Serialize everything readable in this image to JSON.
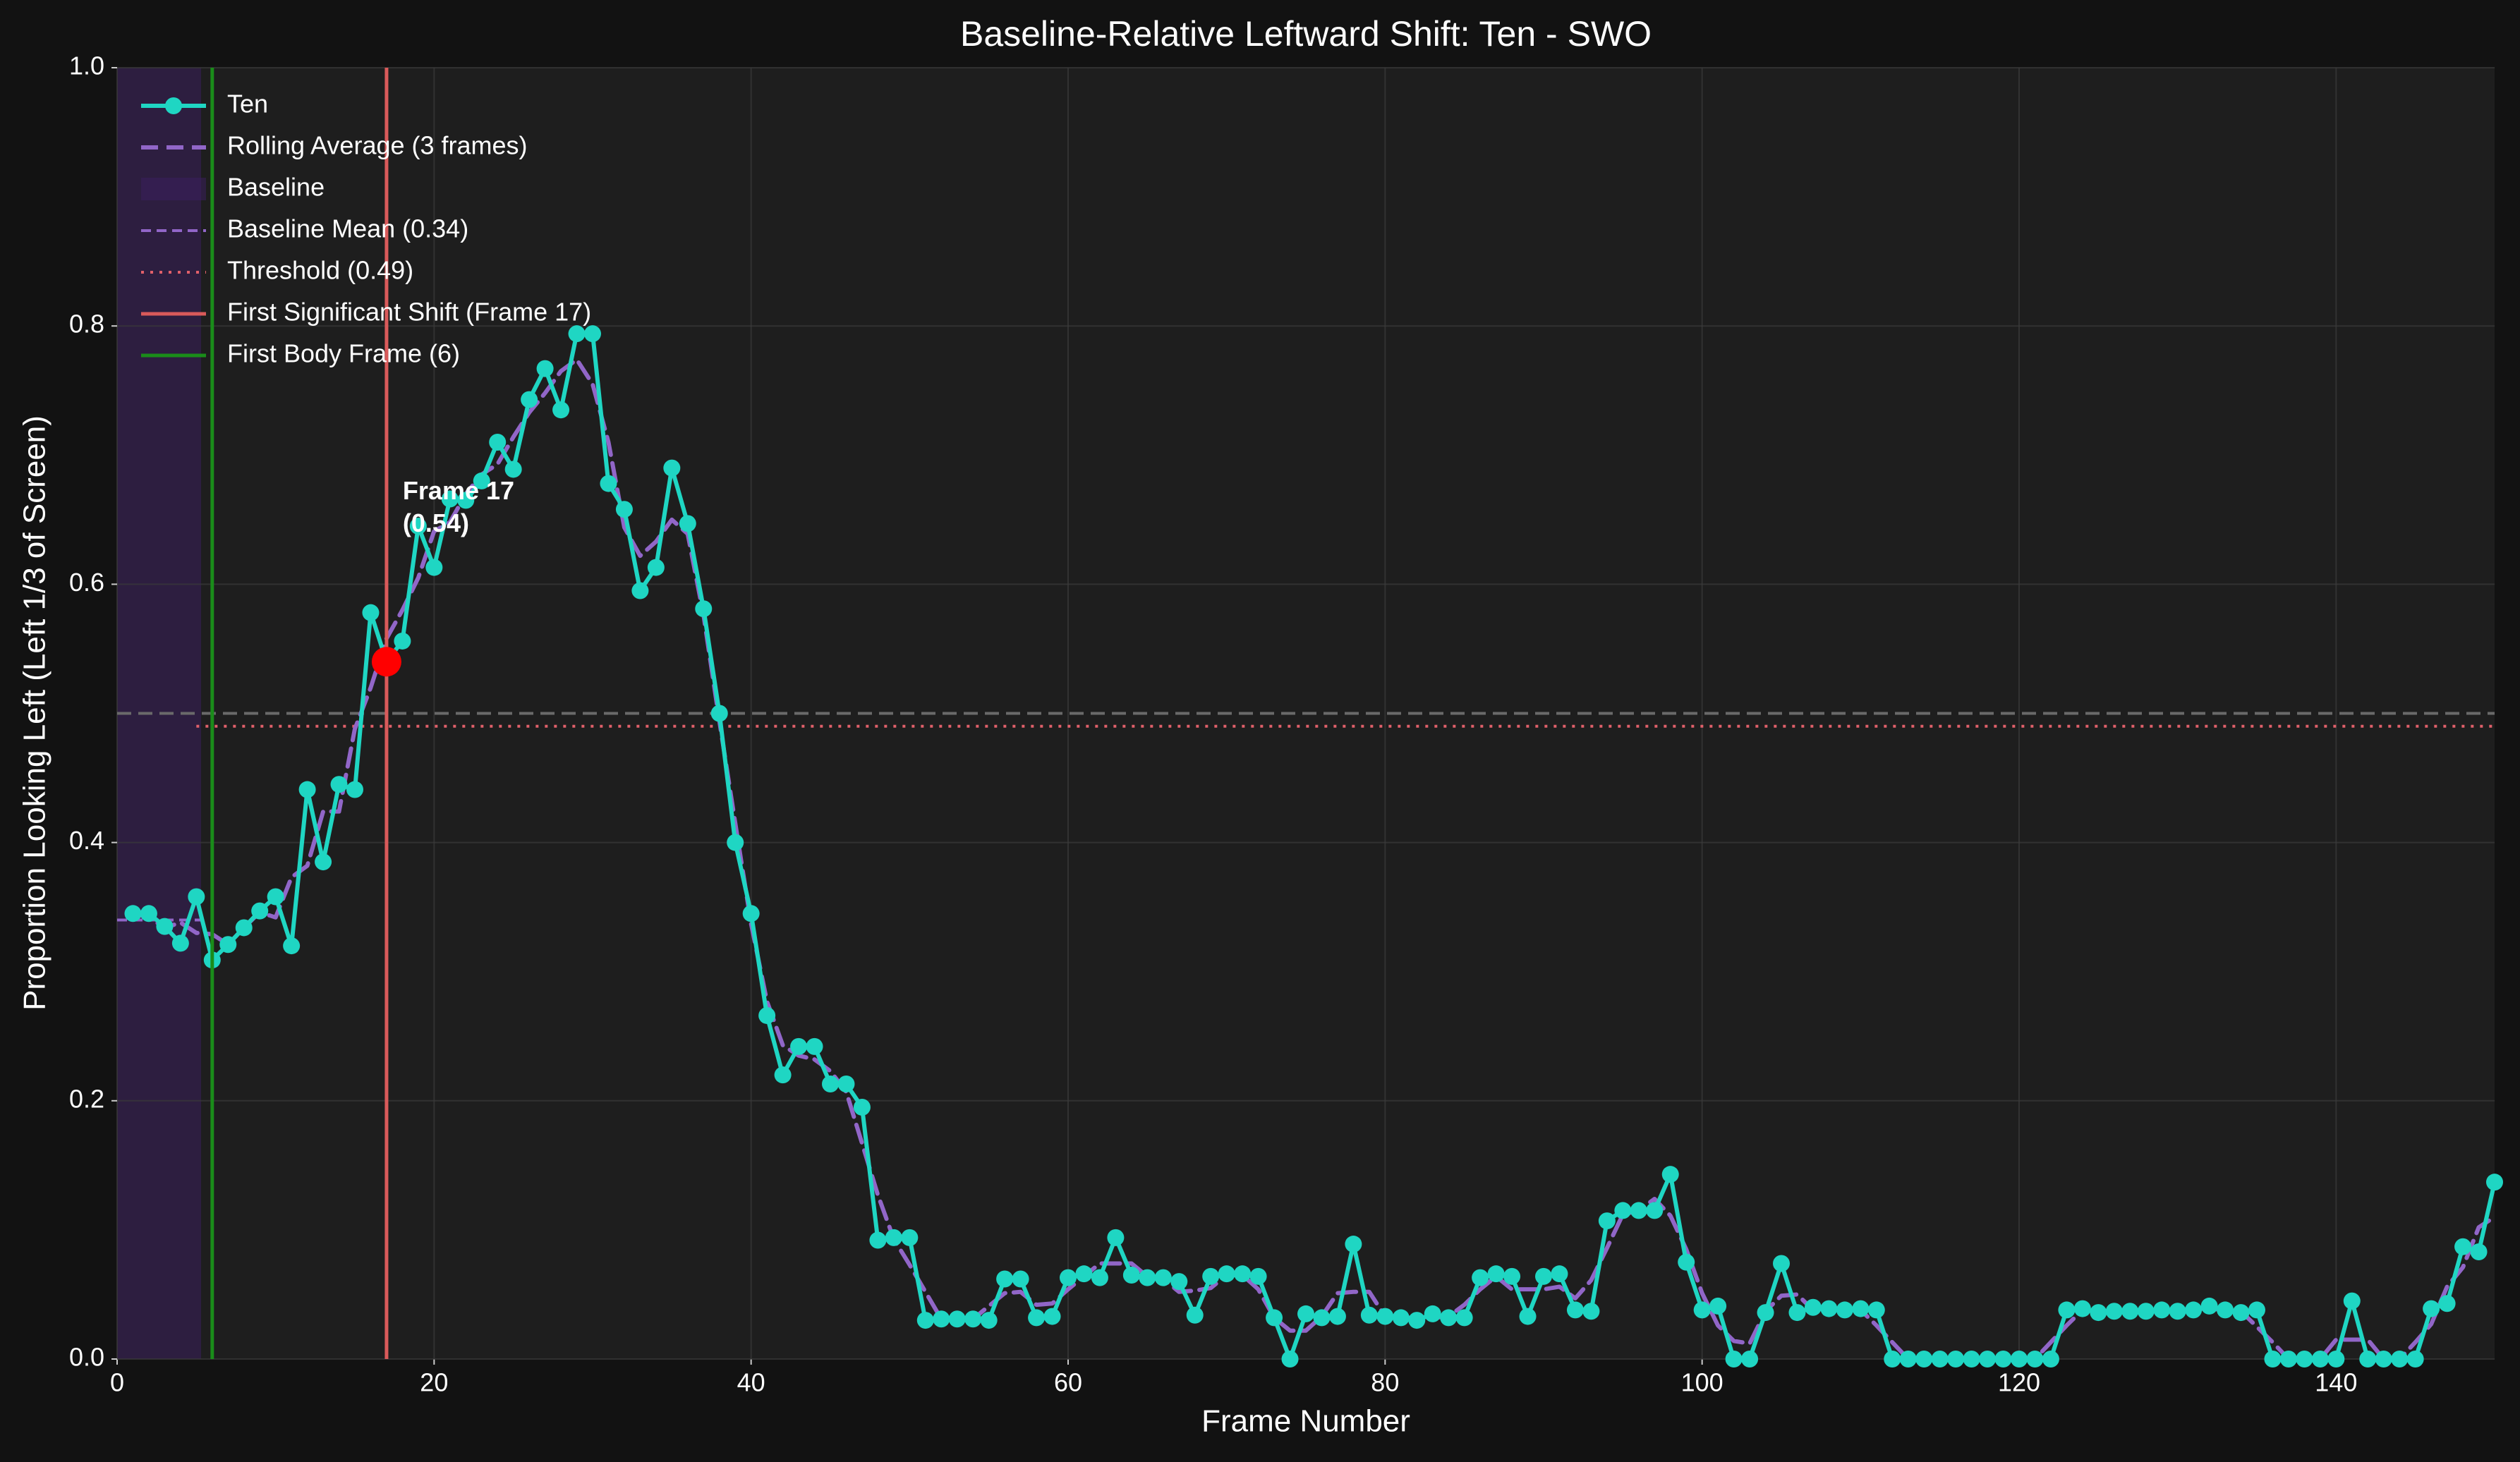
{
  "chart_data": {
    "type": "line",
    "title": "Baseline-Relative Leftward Shift: Ten - SWO",
    "xlabel": "Frame Number",
    "ylabel": "Proportion Looking Left (Left 1/3 of Screen)",
    "xlim": [
      0,
      150
    ],
    "ylim": [
      0,
      1
    ],
    "xticks": [
      0,
      20,
      40,
      60,
      80,
      100,
      120,
      140
    ],
    "yticks": [
      {
        "value": 0,
        "label": "0.0"
      },
      0.2,
      0.4,
      0.6,
      0.8,
      {
        "value": 1,
        "label": "1.0"
      }
    ],
    "grid": true,
    "legend": "upper left",
    "x": [
      1,
      2,
      3,
      4,
      5,
      6,
      7,
      8,
      9,
      10,
      11,
      12,
      13,
      14,
      15,
      16,
      17,
      18,
      19,
      20,
      21,
      22,
      23,
      24,
      25,
      26,
      27,
      28,
      29,
      30,
      31,
      32,
      33,
      34,
      35,
      36,
      37,
      38,
      39,
      40,
      41,
      42,
      43,
      44,
      45,
      46,
      47,
      48,
      49,
      50,
      51,
      52,
      53,
      54,
      55,
      56,
      57,
      58,
      59,
      60,
      61,
      62,
      63,
      64,
      65,
      66,
      67,
      68,
      69,
      70,
      71,
      72,
      73,
      74,
      75,
      76,
      77,
      78,
      79,
      80,
      81,
      82,
      83,
      84,
      85,
      86,
      87,
      88,
      89,
      90,
      91,
      92,
      93,
      94,
      95,
      96,
      97,
      98,
      99,
      100,
      101,
      102,
      103,
      104,
      105,
      106,
      107,
      108,
      109,
      110,
      111,
      112,
      113,
      114,
      115,
      116,
      117,
      118,
      119,
      120,
      121,
      122,
      123,
      124,
      125,
      126,
      127,
      128,
      129,
      130,
      131,
      132,
      133,
      134,
      135,
      136,
      137,
      138,
      139,
      140,
      141,
      142,
      143,
      144,
      145,
      146,
      147,
      148,
      149,
      150
    ],
    "series": [
      {
        "name": "Ten",
        "color": "#1fd6c3",
        "linestyle": "solid",
        "markers": true,
        "values": [
          0.345,
          0.345,
          0.335,
          0.322,
          0.358,
          0.309,
          0.321,
          0.334,
          0.347,
          0.358,
          0.32,
          0.441,
          0.385,
          0.445,
          0.441,
          0.578,
          0.54,
          0.556,
          0.645,
          0.613,
          0.666,
          0.665,
          0.68,
          0.71,
          0.689,
          0.743,
          0.767,
          0.735,
          0.794,
          0.794,
          0.678,
          0.658,
          0.595,
          0.613,
          0.69,
          0.647,
          0.581,
          0.5,
          0.4,
          0.345,
          0.266,
          0.22,
          0.242,
          0.242,
          0.213,
          0.213,
          0.195,
          0.092,
          0.094,
          0.094,
          0.03,
          0.031,
          0.031,
          0.031,
          0.03,
          0.062,
          0.062,
          0.032,
          0.033,
          0.063,
          0.066,
          0.063,
          0.094,
          0.065,
          0.063,
          0.063,
          0.06,
          0.034,
          0.064,
          0.066,
          0.066,
          0.064,
          0.032,
          0,
          0.035,
          0.032,
          0.033,
          0.089,
          0.034,
          0.033,
          0.032,
          0.03,
          0.035,
          0.032,
          0.032,
          0.063,
          0.066,
          0.064,
          0.033,
          0.064,
          0.066,
          0.038,
          0.037,
          0.107,
          0.115,
          0.115,
          0.115,
          0.143,
          0.075,
          0.038,
          0.041,
          0,
          0,
          0.036,
          0.074,
          0.036,
          0.04,
          0.039,
          0.038,
          0.039,
          0.038,
          0,
          0,
          0,
          0,
          0,
          0,
          0,
          0,
          0,
          0,
          0,
          0.038,
          0.039,
          0.036,
          0.037,
          0.037,
          0.037,
          0.038,
          0.037,
          0.038,
          0.041,
          0.038,
          0.036,
          0.038,
          0,
          0,
          0,
          0,
          0,
          0.045,
          0,
          0,
          0,
          0,
          0.039,
          0.043,
          0.087,
          0.083,
          0.137
        ]
      },
      {
        "name": "Rolling Average (3 frames)",
        "color": "#9166c8",
        "linestyle": "dashed",
        "markers": false,
        "values": [
          0.345,
          0.342,
          0.334,
          0.338,
          0.33,
          0.329,
          0.321,
          0.334,
          0.346,
          0.342,
          0.373,
          0.382,
          0.424,
          0.424,
          0.488,
          0.52,
          0.558,
          0.58,
          0.605,
          0.641,
          0.648,
          0.67,
          0.685,
          0.693,
          0.714,
          0.733,
          0.748,
          0.765,
          0.774,
          0.755,
          0.71,
          0.644,
          0.622,
          0.633,
          0.65,
          0.639,
          0.576,
          0.494,
          0.415,
          0.337,
          0.277,
          0.243,
          0.235,
          0.232,
          0.223,
          0.207,
          0.167,
          0.127,
          0.093,
          0.073,
          0.052,
          0.031,
          0.031,
          0.031,
          0.041,
          0.051,
          0.052,
          0.042,
          0.043,
          0.054,
          0.064,
          0.074,
          0.074,
          0.074,
          0.064,
          0.062,
          0.052,
          0.053,
          0.055,
          0.065,
          0.065,
          0.054,
          0.032,
          0.022,
          0.022,
          0.033,
          0.051,
          0.052,
          0.052,
          0.033,
          0.032,
          0.032,
          0.032,
          0.033,
          0.042,
          0.054,
          0.064,
          0.054,
          0.054,
          0.054,
          0.056,
          0.047,
          0.061,
          0.086,
          0.112,
          0.115,
          0.124,
          0.111,
          0.085,
          0.051,
          0.026,
          0.014,
          0.012,
          0.037,
          0.049,
          0.05,
          0.038,
          0.039,
          0.039,
          0.038,
          0.026,
          0.013,
          0,
          0,
          0,
          0,
          0,
          0,
          0,
          0,
          0,
          0.013,
          0.026,
          0.038,
          0.037,
          0.037,
          0.037,
          0.037,
          0.037,
          0.038,
          0.039,
          0.039,
          0.038,
          0.037,
          0.025,
          0.013,
          0,
          0,
          0,
          0.015,
          0.015,
          0.015,
          0,
          0,
          0.013,
          0.027,
          0.056,
          0.071,
          0.102,
          0.11
        ]
      }
    ],
    "baseline": {
      "name": "Baseline",
      "color": "#3a1f5c",
      "xrange": [
        0,
        5.3
      ]
    },
    "baseline_mean": {
      "name": "Baseline Mean (0.34)",
      "color": "#9166c8",
      "value": 0.34,
      "xrange": [
        0,
        5.3
      ]
    },
    "threshold": {
      "name": "Threshold (0.49)",
      "color": "#e0606a",
      "value": 0.49,
      "xrange": [
        5,
        150
      ]
    },
    "reference_line": {
      "value": 0.5,
      "color": "#6a6a6a"
    },
    "shift_line": {
      "name": "First Significant Shift (Frame 17)",
      "color": "#d95a5a",
      "x": 17
    },
    "body_line": {
      "name": "First Body Frame (6)",
      "color": "#1a8c1a",
      "x": 6
    },
    "marker": {
      "x": 17,
      "y": 0.54,
      "color": "#ff0000"
    },
    "annotation": {
      "lines": [
        "Frame 17",
        "(0.54)"
      ]
    }
  }
}
